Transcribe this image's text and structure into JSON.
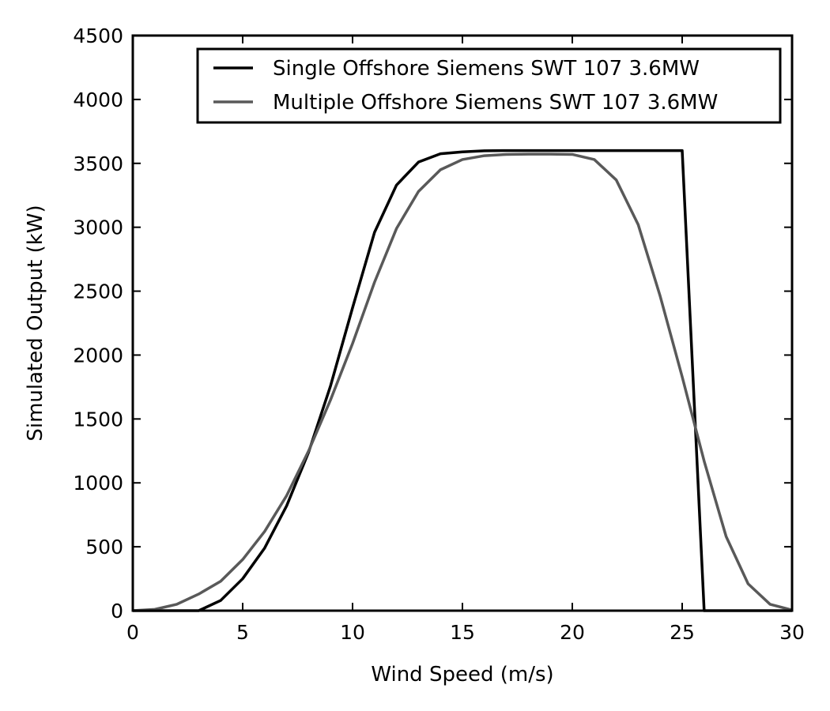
{
  "chart_data": {
    "type": "line",
    "xlabel": "Wind Speed (m/s)",
    "ylabel": "Simulated Output (kW)",
    "xlim": [
      0,
      30
    ],
    "ylim": [
      0,
      4500
    ],
    "xticks": [
      0,
      5,
      10,
      15,
      20,
      25,
      30
    ],
    "yticks": [
      0,
      500,
      1000,
      1500,
      2000,
      2500,
      3000,
      3500,
      4000,
      4500
    ],
    "grid": false,
    "legend_position": "top-right",
    "series": [
      {
        "name": "Single Offshore Siemens SWT 107 3.6MW",
        "color": "#000000",
        "x": [
          0,
          1,
          2,
          3,
          4,
          5,
          6,
          7,
          8,
          9,
          10,
          11,
          12,
          13,
          14,
          15,
          16,
          17,
          18,
          19,
          20,
          21,
          22,
          23,
          24,
          25,
          26,
          27,
          28,
          29,
          30
        ],
        "y": [
          0,
          0,
          0,
          0,
          80,
          250,
          490,
          820,
          1240,
          1760,
          2370,
          2960,
          3330,
          3510,
          3575,
          3590,
          3598,
          3600,
          3600,
          3600,
          3600,
          3600,
          3600,
          3600,
          3600,
          3600,
          0,
          0,
          0,
          0,
          0
        ]
      },
      {
        "name": "Multiple Offshore Siemens SWT 107 3.6MW",
        "color": "#595959",
        "x": [
          0,
          1,
          2,
          3,
          4,
          5,
          6,
          7,
          8,
          9,
          10,
          11,
          12,
          13,
          14,
          15,
          16,
          17,
          18,
          19,
          20,
          21,
          22,
          23,
          24,
          25,
          26,
          27,
          28,
          29,
          30
        ],
        "y": [
          0,
          10,
          50,
          130,
          230,
          400,
          620,
          900,
          1250,
          1650,
          2090,
          2570,
          2990,
          3280,
          3450,
          3530,
          3560,
          3570,
          3572,
          3572,
          3570,
          3530,
          3370,
          3020,
          2460,
          1830,
          1170,
          580,
          210,
          50,
          5
        ]
      }
    ]
  }
}
